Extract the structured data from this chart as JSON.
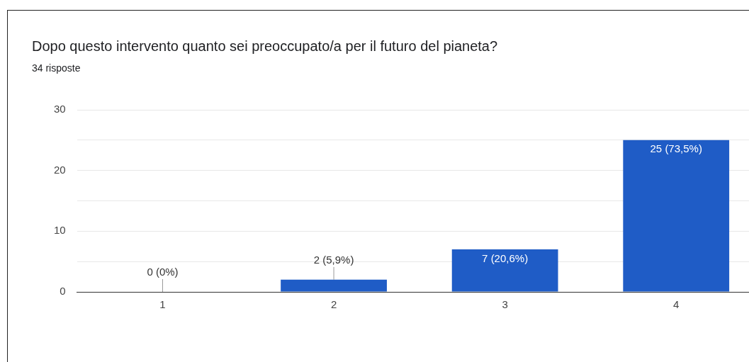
{
  "chart_data": {
    "type": "bar",
    "title": "Dopo questo intervento quanto sei preoccupato/a per il futuro del pianeta?",
    "subtitle": "34 risposte",
    "categories": [
      "1",
      "2",
      "3",
      "4"
    ],
    "values": [
      0,
      2,
      7,
      25
    ],
    "value_labels": [
      "0 (0%)",
      "2 (5,9%)",
      "7 (20,6%)",
      "25 (73,5%)"
    ],
    "color": "#1f5cc6",
    "ylim": [
      0,
      30
    ],
    "yticks": [
      0,
      {
        "value": 5,
        "label": null
      },
      10,
      {
        "value": 15,
        "label": null
      },
      20,
      {
        "value": 25,
        "label": null
      },
      30
    ],
    "grid": "y"
  }
}
